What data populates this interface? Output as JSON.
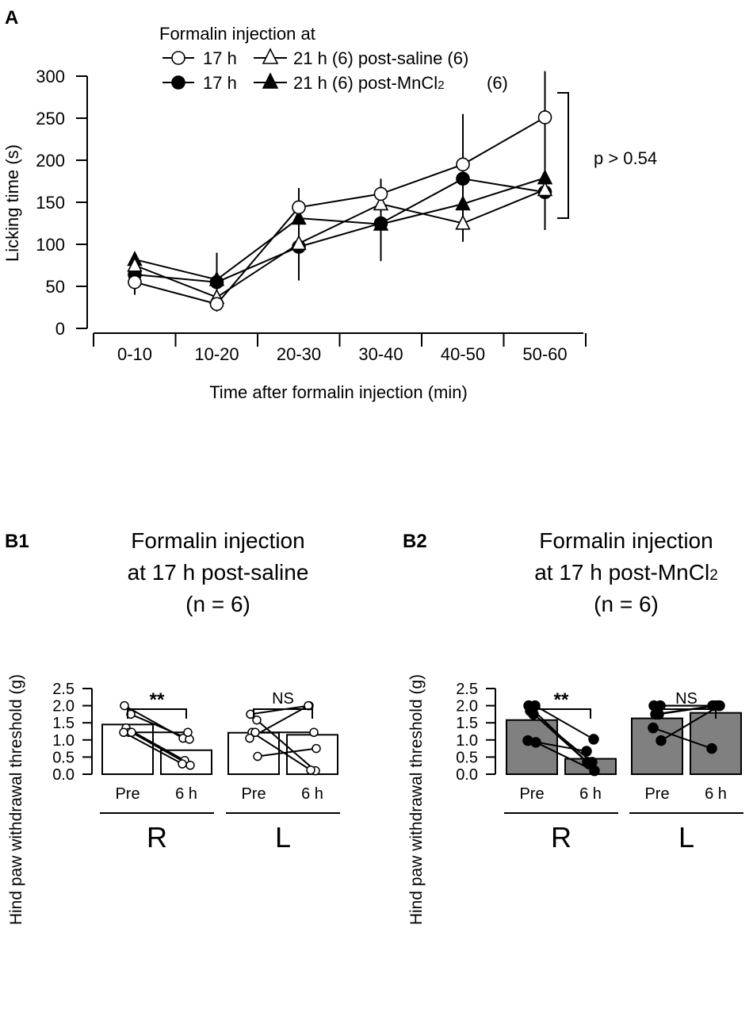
{
  "panel_a": {
    "label": "A",
    "legend_title": "Formalin injection at",
    "legend_rows": [
      {
        "text_a": "17 h",
        "text_b": "21 h (6) post-saline (6)"
      },
      {
        "text_a": "17 h",
        "text_b": "21 h (6) post-MnCl",
        "sub": "2",
        "text_c": "(6)"
      }
    ],
    "annotation": "p > 0.54"
  },
  "panel_b1": {
    "label": "B1",
    "title_lines": [
      "Formalin injection",
      "at 17 h post-saline",
      "(n = 6)"
    ],
    "sig_right": "**",
    "sig_left": "NS"
  },
  "panel_b2": {
    "label": "B2",
    "title_lines": [
      "Formalin injection",
      "at 17 h post-MnCl",
      "(n = 6)"
    ],
    "title_sub": "2",
    "sig_right": "**",
    "sig_left": "NS"
  },
  "chart_data": [
    {
      "type": "line",
      "title": "",
      "xlabel": "Time after formalin injection (min)",
      "ylabel": "Licking time (s)",
      "ylim": [
        0,
        300
      ],
      "yticks": [
        0,
        50,
        100,
        150,
        200,
        250,
        300
      ],
      "categories": [
        "0-10",
        "10-20",
        "20-30",
        "30-40",
        "40-50",
        "50-60"
      ],
      "series": [
        {
          "name": "17 h post-saline",
          "marker": "circle-open",
          "values": [
            55,
            29,
            144,
            160,
            195,
            251
          ],
          "err": [
            15,
            8,
            23,
            18,
            60,
            55
          ]
        },
        {
          "name": "21 h post-saline",
          "marker": "triangle-open",
          "values": [
            75,
            37,
            101,
            148,
            125,
            165
          ],
          "err": [
            0,
            0,
            0,
            0,
            22,
            0
          ]
        },
        {
          "name": "17 h post-MnCl2",
          "marker": "circle-filled",
          "values": [
            64,
            55,
            97,
            125,
            178,
            162
          ],
          "err": [
            0,
            35,
            40,
            45,
            0,
            45
          ]
        },
        {
          "name": "21 h post-MnCl2",
          "marker": "triangle-filled",
          "values": [
            82,
            58,
            131,
            124,
            148,
            179
          ],
          "err": [
            0,
            0,
            0,
            0,
            0,
            0
          ]
        }
      ],
      "legend_position": "top"
    },
    {
      "type": "bar",
      "title": "Formalin injection at 17 h post-saline (n = 6)",
      "ylabel": "Hind paw withdrawal threshold (g)",
      "ylim": [
        0,
        2.5
      ],
      "yticks": [
        "0.0",
        "0.5",
        "1.0",
        "1.5",
        "2.0",
        "2.5"
      ],
      "groups": [
        "R",
        "L"
      ],
      "categories": [
        "Pre",
        "6 h"
      ],
      "bar_fill": "#ffffff",
      "point_style": "open",
      "bars": {
        "R": [
          1.45,
          0.7
        ],
        "L": [
          1.21,
          1.15
        ]
      },
      "pairs": {
        "R": [
          [
            2.0,
            1.05
          ],
          [
            1.75,
            1.02
          ],
          [
            1.35,
            0.4
          ],
          [
            1.22,
            1.22
          ],
          [
            1.22,
            0.3
          ],
          [
            1.22,
            0.26
          ]
        ],
        "L": [
          [
            1.75,
            2.0
          ],
          [
            1.58,
            0.1
          ],
          [
            1.22,
            0.12
          ],
          [
            1.22,
            1.22
          ],
          [
            1.05,
            2.0
          ],
          [
            0.52,
            0.75
          ]
        ]
      }
    },
    {
      "type": "bar",
      "title": "Formalin injection at 17 h post-MnCl2 (n = 6)",
      "ylabel": "Hind paw withdrawal threshold (g)",
      "ylim": [
        0,
        2.5
      ],
      "yticks": [
        "0.0",
        "0.5",
        "1.0",
        "1.5",
        "2.0",
        "2.5"
      ],
      "groups": [
        "R",
        "L"
      ],
      "categories": [
        "Pre",
        "6 h"
      ],
      "bar_fill": "#808080",
      "point_style": "filled",
      "bars": {
        "R": [
          1.58,
          0.45
        ],
        "L": [
          1.63,
          1.79
        ]
      },
      "pairs": {
        "R": [
          [
            2.0,
            0.35
          ],
          [
            2.0,
            1.02
          ],
          [
            1.85,
            0.3
          ],
          [
            1.75,
            0.35
          ],
          [
            0.98,
            0.67
          ],
          [
            0.93,
            0.1
          ]
        ],
        "L": [
          [
            2.0,
            2.0
          ],
          [
            2.0,
            2.0
          ],
          [
            1.75,
            2.0
          ],
          [
            1.75,
            2.0
          ],
          [
            1.35,
            0.75
          ],
          [
            0.98,
            2.0
          ]
        ]
      }
    }
  ]
}
